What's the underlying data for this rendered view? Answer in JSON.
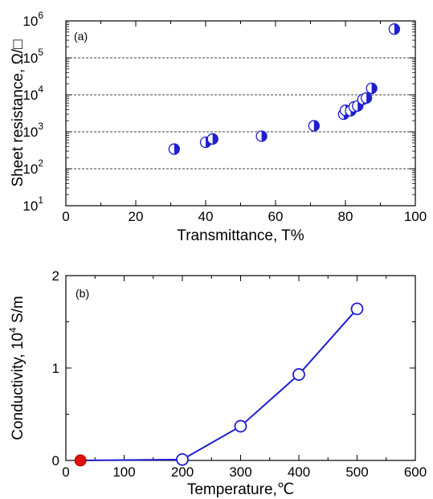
{
  "chart_data": [
    {
      "type": "scatter",
      "panel_label": "(a)",
      "xlabel": "Transmittance, T%",
      "ylabel": "Sheet resistance, Ω/□",
      "xlim": [
        0,
        100
      ],
      "ylim": [
        10,
        1000000
      ],
      "yscale": "log",
      "x_ticks": [
        "0",
        "20",
        "40",
        "60",
        "80",
        "100"
      ],
      "y_ticks": [
        {
          "base": "10",
          "exp": "1"
        },
        {
          "base": "10",
          "exp": "2"
        },
        {
          "base": "10",
          "exp": "3"
        },
        {
          "base": "10",
          "exp": "4"
        },
        {
          "base": "10",
          "exp": "5"
        },
        {
          "base": "10",
          "exp": "6"
        }
      ],
      "grid": "horizontal dashed at decades",
      "marker": "circle, half-filled (right half filled)",
      "color": "#1f1fd0",
      "x": [
        31,
        40,
        42,
        56,
        71,
        79.5,
        80,
        81.5,
        82.5,
        83.5,
        85,
        86,
        87.5,
        94
      ],
      "y": [
        340,
        520,
        640,
        760,
        1450,
        3000,
        3800,
        3700,
        4700,
        5000,
        7500,
        8200,
        15000,
        600000
      ]
    },
    {
      "type": "line",
      "panel_label": "(b)",
      "xlabel": "Temperature,℃",
      "ylabel_prefix": "Conductivity, 10",
      "ylabel_exp": "4",
      "ylabel_suffix": " S/m",
      "xlim": [
        0,
        600
      ],
      "ylim": [
        0,
        2
      ],
      "x_ticks": [
        "0",
        "100",
        "200",
        "300",
        "400",
        "500",
        "600"
      ],
      "y_ticks": [
        "0",
        "1",
        "2"
      ],
      "color": "#1f1fd0",
      "highlight_color": "#e01010",
      "marker": "open circle",
      "x": [
        200,
        300,
        400,
        500
      ],
      "y": [
        0.01,
        0.37,
        0.93,
        1.64
      ],
      "highlight_point": {
        "x": 25,
        "y": 0
      },
      "line_from_origin": true
    }
  ]
}
